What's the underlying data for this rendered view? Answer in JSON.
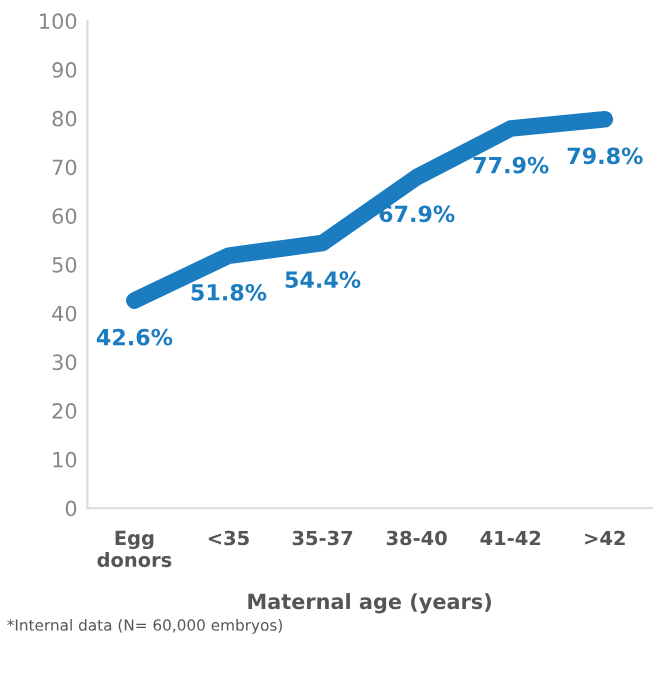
{
  "chart_data": {
    "type": "line",
    "categories": [
      "Egg\ndonors",
      "<35",
      "35-37",
      "38-40",
      "41-42",
      ">42"
    ],
    "series": [
      {
        "color": "#1b7cc0",
        "values": [
          42.6,
          51.8,
          54.4,
          67.9,
          77.9,
          79.8
        ],
        "value_labels": [
          "42.6%",
          "51.8%",
          "54.4%",
          "67.9%",
          "77.9%",
          "79.8%"
        ]
      }
    ],
    "xlabel": "Maternal age (years)",
    "ylim": [
      0,
      100
    ],
    "yticks": [
      0,
      10,
      20,
      30,
      40,
      50,
      60,
      70,
      80,
      90,
      100
    ],
    "grid": false,
    "legend": false,
    "marker": "none",
    "line_style": "solid",
    "annotations": [
      "*Internal data (N= 60,000 embryos)"
    ]
  }
}
